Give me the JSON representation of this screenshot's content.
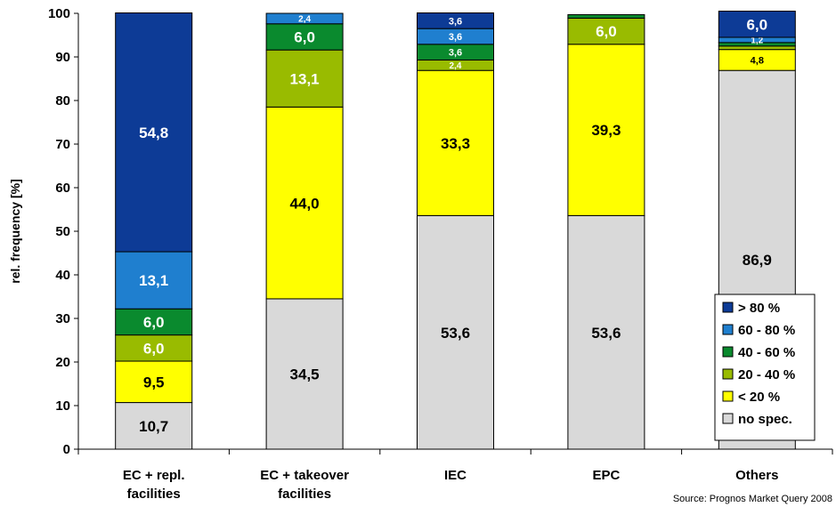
{
  "chart_data": {
    "type": "bar",
    "stacked": true,
    "title": "",
    "xlabel": "",
    "ylabel": "rel. frequency [%]",
    "ylim": [
      0,
      100
    ],
    "yticks": [
      0,
      10,
      20,
      30,
      40,
      50,
      60,
      70,
      80,
      90,
      100
    ],
    "grid": false,
    "legend_position": "bottom-right",
    "categories": [
      [
        "EC + repl.",
        "facilities"
      ],
      [
        "EC + takeover",
        "facilities"
      ],
      [
        "IEC"
      ],
      [
        "EPC"
      ],
      [
        "Others"
      ]
    ],
    "series": [
      {
        "name": "no spec.",
        "color": "#d9d9d9",
        "label_color": "#000000",
        "values": [
          10.7,
          34.5,
          53.6,
          53.6,
          86.9
        ],
        "labels": [
          "10,7",
          "34,5",
          "53,6",
          "53,6",
          "86,9"
        ]
      },
      {
        "name": "< 20 %",
        "color": "#ffff00",
        "label_color": "#000000",
        "values": [
          9.5,
          44.0,
          33.3,
          39.3,
          4.8
        ],
        "labels": [
          "9,5",
          "44,0",
          "33,3",
          "39,3",
          "4,8"
        ]
      },
      {
        "name": "20 - 40 %",
        "color": "#99bb00",
        "label_color": "#ffffff",
        "values": [
          6.0,
          13.1,
          2.4,
          6.0,
          0.8
        ],
        "labels": [
          "6,0",
          "13,1",
          "2,4",
          "6,0",
          ""
        ]
      },
      {
        "name": "40 - 60 %",
        "color": "#0a8a2e",
        "label_color": "#ffffff",
        "values": [
          6.0,
          6.0,
          3.6,
          0.8,
          0.8
        ],
        "labels": [
          "6,0",
          "6,0",
          "3,6",
          "",
          ""
        ]
      },
      {
        "name": "60 - 80 %",
        "color": "#1f7fcf",
        "label_color": "#ffffff",
        "values": [
          13.1,
          2.4,
          3.6,
          0.0,
          1.2
        ],
        "labels": [
          "13,1",
          "2,4",
          "3,6",
          "",
          "1,2"
        ]
      },
      {
        "name": "> 80 %",
        "color": "#0d3b96",
        "label_color": "#ffffff",
        "values": [
          54.8,
          0.0,
          3.6,
          0.0,
          6.0
        ],
        "labels": [
          "54,8",
          "",
          "3,6",
          "",
          "6,0"
        ]
      }
    ],
    "source": "Source: Prognos Market Query 2008"
  }
}
